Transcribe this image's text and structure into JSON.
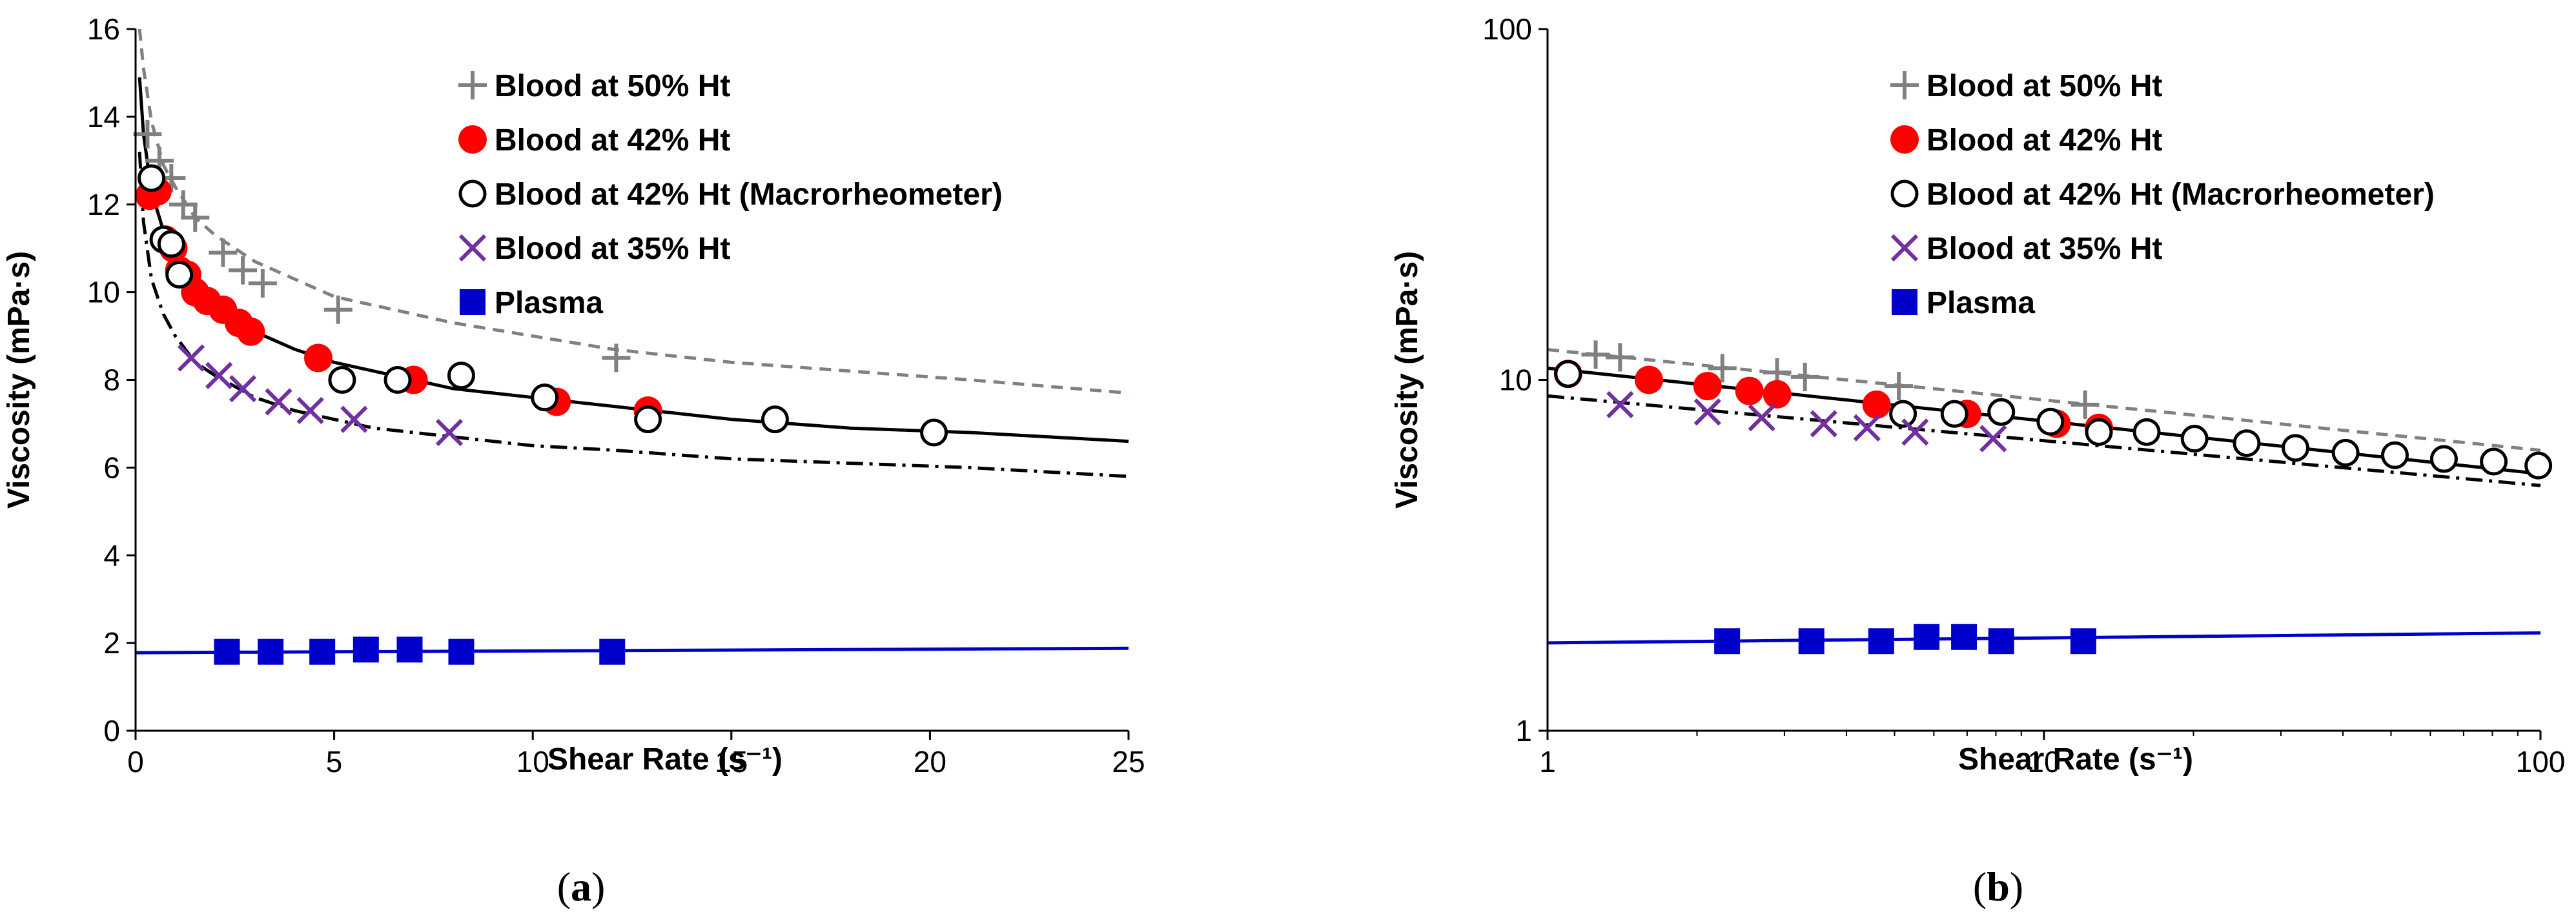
{
  "colors": {
    "ht50": "#808080",
    "ht42": "#ff0000",
    "ht42_macro": "#000000",
    "ht35": "#7030a0",
    "plasma": "#0000cc",
    "axis": "#000000"
  },
  "chart_data": [
    {
      "type": "scatter",
      "panel": "a",
      "caption_open": "(",
      "caption_letter": "a",
      "caption_close": ")",
      "xlabel": "Shear  Rate (s⁻¹)",
      "ylabel": "Viscosity (mPa·s)",
      "xscale": "linear",
      "yscale": "linear",
      "xlim": [
        0,
        25
      ],
      "ylim": [
        0,
        16
      ],
      "xticks": [
        0,
        5,
        10,
        15,
        20,
        25
      ],
      "yticks": [
        0,
        2,
        4,
        6,
        8,
        10,
        12,
        14,
        16
      ],
      "grid": false,
      "legend_position": "top-right",
      "series": [
        {
          "key": "ht50",
          "name": "Blood at 50% Ht",
          "marker": "plus",
          "x": [
            0.3,
            0.6,
            0.9,
            1.2,
            1.5,
            2.2,
            2.7,
            3.2,
            5.1,
            12.1
          ],
          "y": [
            13.6,
            13.0,
            12.6,
            12.0,
            11.7,
            10.9,
            10.5,
            10.2,
            9.6,
            8.5
          ]
        },
        {
          "key": "ht42",
          "name": "Blood at 42% Ht",
          "marker": "filled-circle",
          "x": [
            0.35,
            0.55,
            0.75,
            0.95,
            1.1,
            1.3,
            1.5,
            1.8,
            2.2,
            2.6,
            2.9,
            4.6,
            7.0,
            10.6,
            12.9
          ],
          "y": [
            12.2,
            12.3,
            11.2,
            11.0,
            10.5,
            10.4,
            10.0,
            9.8,
            9.6,
            9.3,
            9.1,
            8.5,
            8.0,
            7.5,
            7.3
          ]
        },
        {
          "key": "ht42_macro",
          "name": "Blood at 42% Ht (Macrorheometer)",
          "marker": "open-circle",
          "x": [
            0.4,
            0.7,
            0.9,
            1.1,
            5.2,
            6.6,
            8.2,
            10.3,
            12.9,
            16.1,
            20.1
          ],
          "y": [
            12.6,
            11.2,
            11.1,
            10.4,
            8.0,
            8.0,
            8.1,
            7.6,
            7.1,
            7.1,
            6.8
          ]
        },
        {
          "key": "ht35",
          "name": "Blood at 35% Ht",
          "marker": "x",
          "x": [
            1.4,
            2.1,
            2.7,
            3.6,
            4.4,
            5.5,
            7.9
          ],
          "y": [
            8.5,
            8.1,
            7.8,
            7.5,
            7.3,
            7.1,
            6.8
          ]
        },
        {
          "key": "plasma",
          "name": "Plasma",
          "marker": "filled-square",
          "x": [
            2.3,
            3.4,
            4.7,
            5.8,
            6.9,
            8.2,
            12.0
          ],
          "y": [
            1.8,
            1.8,
            1.8,
            1.85,
            1.85,
            1.8,
            1.8
          ]
        }
      ],
      "fits": [
        {
          "key": "ht50",
          "style": "dashed",
          "x": [
            0.1,
            0.2,
            0.4,
            0.7,
            1,
            1.5,
            2,
            3,
            4,
            5,
            6,
            8,
            10,
            12,
            15,
            18,
            21,
            25
          ],
          "y": [
            16.4,
            15.1,
            13.9,
            12.9,
            12.4,
            11.7,
            11.3,
            10.7,
            10.3,
            9.9,
            9.7,
            9.3,
            9.0,
            8.7,
            8.4,
            8.2,
            8.0,
            7.7
          ]
        },
        {
          "key": "ht42",
          "style": "solid",
          "x": [
            0.1,
            0.2,
            0.4,
            0.7,
            1,
            1.5,
            2,
            3,
            4,
            5,
            6,
            8,
            10,
            12,
            15,
            18,
            21,
            25
          ],
          "y": [
            14.9,
            13.6,
            12.3,
            11.4,
            10.8,
            10.2,
            9.7,
            9.1,
            8.7,
            8.4,
            8.2,
            7.8,
            7.6,
            7.4,
            7.1,
            6.9,
            6.8,
            6.6
          ]
        },
        {
          "key": "ht35",
          "style": "dashdot",
          "x": [
            0.1,
            0.2,
            0.4,
            0.7,
            1,
            1.5,
            2,
            3,
            4,
            5,
            6,
            8,
            10,
            12,
            15,
            18,
            21,
            25
          ],
          "y": [
            13.2,
            11.6,
            10.3,
            9.5,
            9.0,
            8.4,
            8.1,
            7.6,
            7.3,
            7.1,
            6.9,
            6.7,
            6.5,
            6.4,
            6.2,
            6.1,
            6.0,
            5.8
          ]
        },
        {
          "key": "plasma",
          "style": "solid",
          "x": [
            0,
            25
          ],
          "y": [
            1.78,
            1.88
          ]
        }
      ]
    },
    {
      "type": "scatter",
      "panel": "b",
      "caption_open": "(",
      "caption_letter": "b",
      "caption_close": ")",
      "xlabel": "Shear  Rate (s⁻¹)",
      "ylabel": "Viscosity (mPa·s)",
      "xscale": "log",
      "yscale": "log",
      "xlim": [
        1,
        100
      ],
      "ylim": [
        1,
        100
      ],
      "xticks": [
        1,
        10,
        100
      ],
      "yticks": [
        1,
        10,
        100
      ],
      "grid": false,
      "legend_position": "top-right",
      "series": [
        {
          "key": "ht50",
          "name": "Blood at 50% Ht",
          "marker": "plus",
          "x": [
            1.25,
            1.4,
            2.25,
            2.9,
            3.3,
            5.1,
            12.1
          ],
          "y": [
            11.8,
            11.6,
            10.8,
            10.5,
            10.2,
            9.6,
            8.5
          ]
        },
        {
          "key": "ht42",
          "name": "Blood at 42% Ht",
          "marker": "filled-circle",
          "x": [
            1.1,
            1.6,
            2.1,
            2.55,
            2.9,
            4.6,
            7.0,
            10.6,
            12.9
          ],
          "y": [
            10.4,
            10.0,
            9.6,
            9.3,
            9.1,
            8.5,
            8.0,
            7.5,
            7.3
          ]
        },
        {
          "key": "ht42_macro",
          "name": "Blood at 42% Ht (Macrorheometer)",
          "marker": "open-circle",
          "x": [
            1.1,
            5.2,
            6.6,
            8.2,
            10.3,
            12.9,
            16.1,
            20.1,
            25.6,
            32.1,
            40.5,
            50.9,
            63.9,
            80.5,
            99.0
          ],
          "y": [
            10.4,
            8.0,
            8.0,
            8.1,
            7.6,
            7.1,
            7.1,
            6.8,
            6.6,
            6.4,
            6.2,
            6.1,
            5.95,
            5.85,
            5.7
          ]
        },
        {
          "key": "ht35",
          "name": "Blood at 35% Ht",
          "marker": "x",
          "x": [
            1.4,
            2.1,
            2.7,
            3.6,
            4.4,
            5.5,
            7.9
          ],
          "y": [
            8.5,
            8.1,
            7.8,
            7.5,
            7.3,
            7.1,
            6.8
          ]
        },
        {
          "key": "plasma",
          "name": "Plasma",
          "marker": "filled-square",
          "x": [
            2.3,
            3.4,
            4.7,
            5.8,
            6.9,
            8.2,
            12.0
          ],
          "y": [
            1.8,
            1.8,
            1.8,
            1.85,
            1.85,
            1.8,
            1.8
          ]
        }
      ],
      "fits": [
        {
          "key": "ht50",
          "style": "dashed",
          "x": [
            1,
            100
          ],
          "y": [
            12.2,
            6.3
          ]
        },
        {
          "key": "ht42",
          "style": "solid",
          "x": [
            1,
            100
          ],
          "y": [
            10.8,
            5.4
          ]
        },
        {
          "key": "ht35",
          "style": "dashdot",
          "x": [
            1,
            100
          ],
          "y": [
            9.0,
            5.0
          ]
        },
        {
          "key": "plasma",
          "style": "solid",
          "x": [
            1,
            100
          ],
          "y": [
            1.78,
            1.9
          ]
        }
      ]
    }
  ]
}
